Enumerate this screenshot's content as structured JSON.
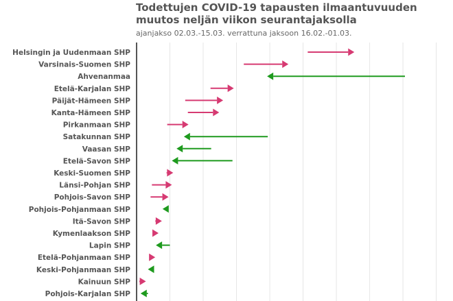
{
  "title": "Todettujen COVID-19 tapausten ilmaantuvuuden muutos neljän viikon seurantajaksolla",
  "subtitle": "ajanjakso 02.03.-15.03. verrattuna jaksoon 16.02.-01.03.",
  "colors": {
    "increase": "#d63a72",
    "decrease": "#1e9a1e"
  },
  "chart_data": {
    "type": "arrow",
    "title": "Todettujen COVID-19 tapausten ilmaantuvuuden muutos neljän viikon seurantajaksolla",
    "subtitle": "ajanjakso 02.03.-15.03. verrattuna jaksoon 16.02.-01.03.",
    "xlim": [
      0,
      470
    ],
    "grid": true,
    "categories": [
      "Helsingin ja Uudenmaan SHP",
      "Varsinais-Suomen SHP",
      "Ahvenanmaa",
      "Etelä-Karjalan SHP",
      "Päijät-Hämeen SHP",
      "Kanta-Hämeen SHP",
      "Pirkanmaan SHP",
      "Satakunnan SHP",
      "Vaasan SHP",
      "Etelä-Savon SHP",
      "Keski-Suomen SHP",
      "Länsi-Pohjan SHP",
      "Pohjois-Savon SHP",
      "Pohjois-Pohjanmaan SHP",
      "Itä-Savon SHP",
      "Kymenlaakson SHP",
      "Lapin SHP",
      "Etelä-Pohjanmaan SHP",
      "Keski-Pohjanmaan SHP",
      "Kainuun SHP",
      "Pohjois-Karjalan SHP"
    ],
    "series": [
      {
        "values_start": [
          257,
          161,
          403,
          111,
          73,
          77,
          46,
          197,
          112,
          144,
          45,
          23,
          21,
          44,
          28,
          29,
          50,
          21,
          22,
          4,
          17
        ],
        "values_end": [
          327,
          228,
          196,
          146,
          130,
          124,
          78,
          71,
          60,
          53,
          55,
          53,
          48,
          39,
          38,
          33,
          29,
          28,
          17,
          14,
          6
        ]
      }
    ]
  }
}
